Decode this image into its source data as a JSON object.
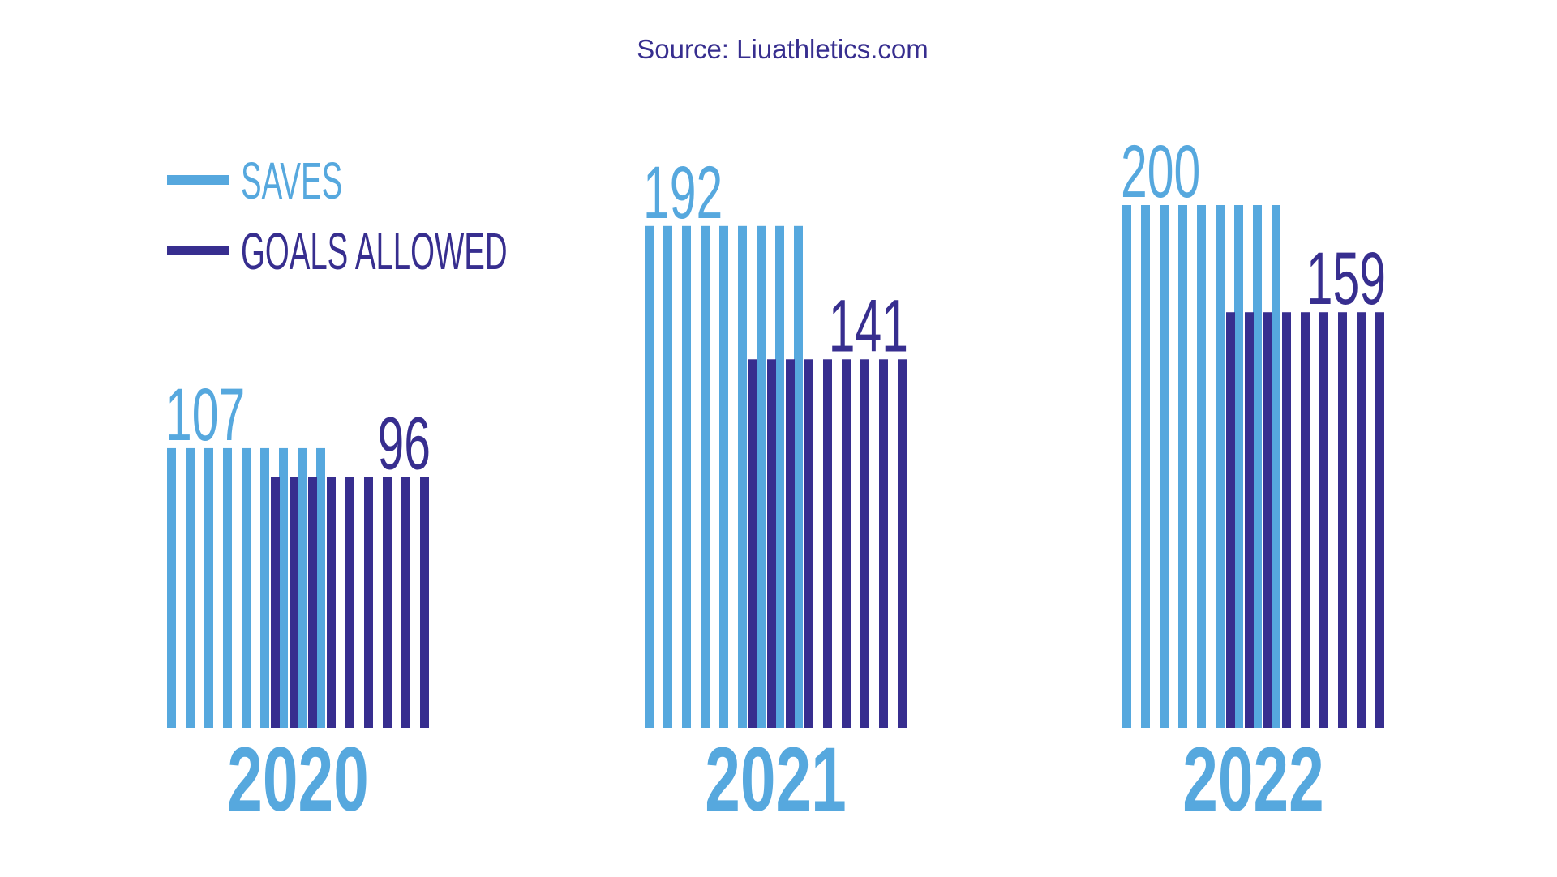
{
  "source": "Source:  Liuathletics.com",
  "colors": {
    "saves": "#56a8de",
    "goals_allowed": "#372e8f",
    "source_text": "#372e8f"
  },
  "chart_data": {
    "type": "bar",
    "categories": [
      "2020",
      "2021",
      "2022"
    ],
    "series": [
      {
        "name": "SAVES",
        "values": [
          107,
          192,
          200
        ]
      },
      {
        "name": "GOALS ALLOWED",
        "values": [
          96,
          141,
          159
        ]
      }
    ],
    "ylim": [
      0,
      200
    ],
    "grid": false,
    "legend": "top-left",
    "title": "",
    "xlabel": "",
    "ylabel": ""
  }
}
